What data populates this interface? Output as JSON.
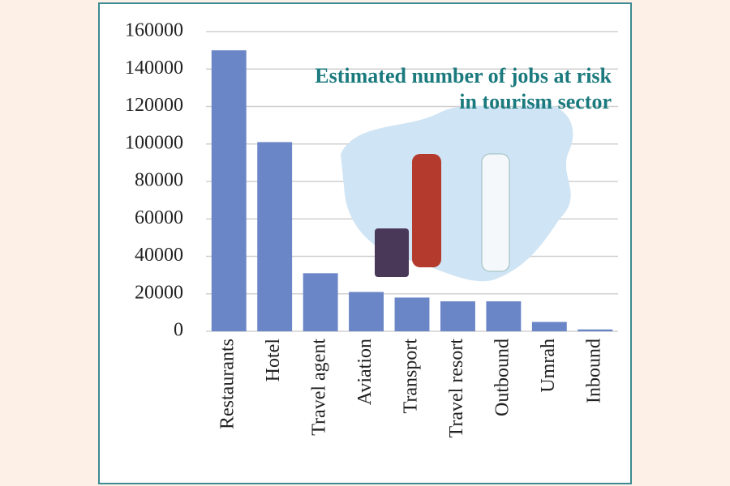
{
  "chart_data": {
    "type": "bar",
    "title": "Estimated number of jobs at risk in tourism sector",
    "categories": [
      "Restaurants",
      "Hotel",
      "Travel agent",
      "Aviation",
      "Transport",
      "Travel resort",
      "Outbound",
      "Umrah",
      "Inbound"
    ],
    "values": [
      150000,
      101000,
      31000,
      21000,
      18000,
      16000,
      16000,
      5000,
      1000
    ],
    "color": "#6b86c6",
    "ylim": [
      0,
      160000
    ],
    "yticks": [
      0,
      20000,
      40000,
      60000,
      80000,
      100000,
      120000,
      140000,
      160000
    ],
    "grid": true
  }
}
